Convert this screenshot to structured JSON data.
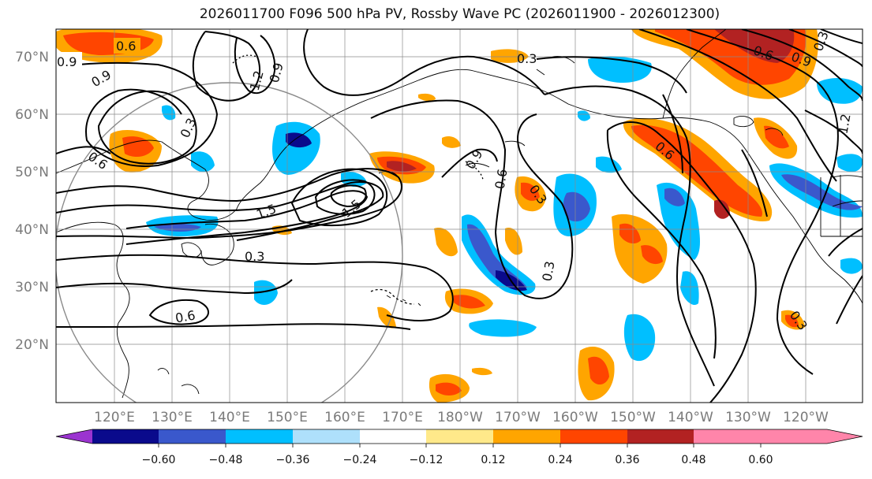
{
  "title": "2026011700 F096 500 hPa PV, Rossby Wave PC (2026011900 - 2026012300)",
  "lat_labels": [
    "70°N",
    "60°N",
    "50°N",
    "40°N",
    "30°N",
    "20°N"
  ],
  "lon_labels": [
    "120°E",
    "130°E",
    "140°E",
    "150°E",
    "160°E",
    "170°E",
    "180°W",
    "170°W",
    "160°W",
    "150°W",
    "140°W",
    "130°W",
    "120°W"
  ],
  "colorbar": {
    "ticks": [
      "−0.60",
      "−0.48",
      "−0.36",
      "−0.24",
      "−0.12",
      "0.12",
      "0.24",
      "0.36",
      "0.48",
      "0.60"
    ],
    "colors": [
      "#9b34d0",
      "#0a0a8c",
      "#3a58cc",
      "#00bfff",
      "#aee0fb",
      "#ffffff",
      "#ffe98a",
      "#ffa500",
      "#ff4500",
      "#b22222",
      "#ff85aa"
    ]
  },
  "contour_labels": [
    "0.6",
    "0.9",
    "0.9",
    "1.2",
    "0.9",
    "0.3",
    "0.6",
    "1.5",
    "1.5",
    "0.3",
    "0.6",
    "0.9",
    "0.6",
    "0.3",
    "0.3",
    "0.3",
    "0.6",
    "0.6",
    "0.9",
    "0.3",
    "1.2",
    "0.3"
  ]
}
